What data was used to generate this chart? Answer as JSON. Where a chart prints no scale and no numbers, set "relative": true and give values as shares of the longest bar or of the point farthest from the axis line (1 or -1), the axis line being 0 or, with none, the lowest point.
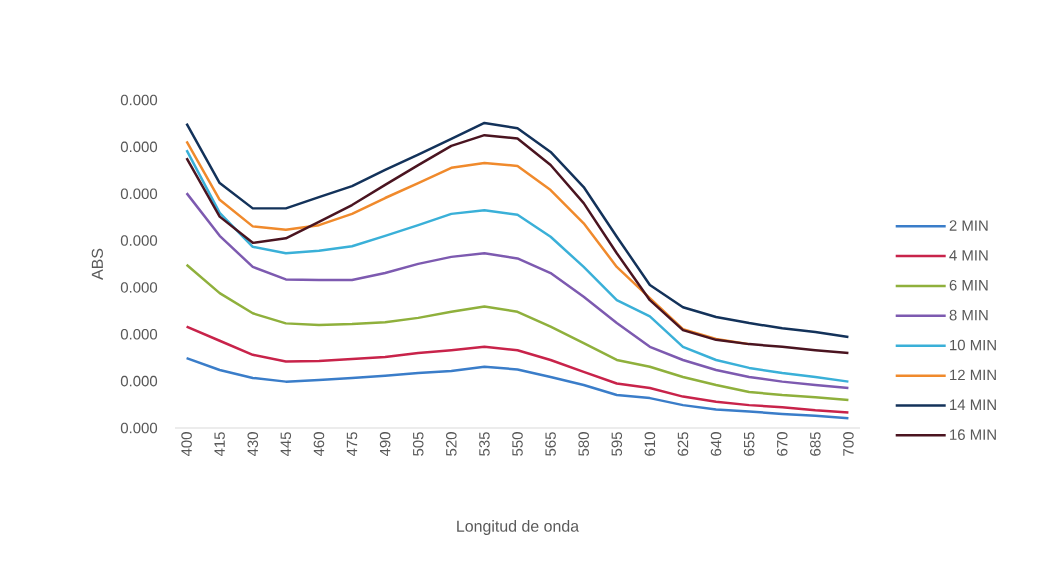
{
  "chart_data": {
    "type": "line",
    "xlabel": "Longitud de onda",
    "ylabel": "ABS",
    "categories": [
      "400",
      "415",
      "430",
      "445",
      "460",
      "475",
      "490",
      "505",
      "520",
      "535",
      "550",
      "565",
      "580",
      "595",
      "610",
      "625",
      "640",
      "655",
      "670",
      "685",
      "700"
    ],
    "relative": true,
    "annotations": [
      "0.000",
      "0.000",
      "0.000",
      "0.000",
      "0.000",
      "0.000",
      "0.000",
      "0.000"
    ],
    "legend": "right",
    "series": [
      {
        "name": "2 MIN",
        "color": "#3a7dc9",
        "values": [
          0.229,
          0.19,
          0.164,
          0.152,
          0.157,
          0.164,
          0.171,
          0.18,
          0.187,
          0.201,
          0.192,
          0.167,
          0.141,
          0.108,
          0.098,
          0.075,
          0.061,
          0.054,
          0.046,
          0.04,
          0.032
        ]
      },
      {
        "name": "4 MIN",
        "color": "#c8234a",
        "values": [
          0.332,
          0.286,
          0.24,
          0.218,
          0.22,
          0.226,
          0.233,
          0.246,
          0.255,
          0.266,
          0.255,
          0.223,
          0.184,
          0.146,
          0.131,
          0.103,
          0.086,
          0.075,
          0.068,
          0.058,
          0.051
        ]
      },
      {
        "name": "6 MIN",
        "color": "#8fb03c",
        "values": [
          0.535,
          0.442,
          0.376,
          0.343,
          0.338,
          0.341,
          0.347,
          0.361,
          0.381,
          0.398,
          0.381,
          0.332,
          0.278,
          0.223,
          0.201,
          0.167,
          0.141,
          0.118,
          0.108,
          0.101,
          0.092
        ]
      },
      {
        "name": "8 MIN",
        "color": "#7d5ab0",
        "values": [
          0.77,
          0.63,
          0.528,
          0.487,
          0.485,
          0.485,
          0.508,
          0.538,
          0.561,
          0.573,
          0.556,
          0.508,
          0.43,
          0.344,
          0.266,
          0.223,
          0.19,
          0.167,
          0.152,
          0.141,
          0.131
        ]
      },
      {
        "name": "10 MIN",
        "color": "#3ab0d8",
        "values": [
          0.911,
          0.705,
          0.594,
          0.573,
          0.581,
          0.596,
          0.63,
          0.665,
          0.702,
          0.714,
          0.699,
          0.627,
          0.528,
          0.419,
          0.366,
          0.266,
          0.223,
          0.197,
          0.18,
          0.167,
          0.152
        ]
      },
      {
        "name": "12 MIN",
        "color": "#f08a2c",
        "values": [
          0.94,
          0.748,
          0.661,
          0.65,
          0.665,
          0.702,
          0.754,
          0.803,
          0.853,
          0.869,
          0.859,
          0.78,
          0.671,
          0.528,
          0.426,
          0.324,
          0.292,
          0.275,
          null,
          null,
          null
        ]
      },
      {
        "name": "14 MIN",
        "color": "#13325a",
        "values": [
          0.998,
          0.803,
          0.72,
          0.72,
          0.757,
          0.793,
          0.846,
          0.896,
          0.948,
          1,
          0.983,
          0.905,
          0.79,
          0.627,
          0.469,
          0.396,
          0.364,
          0.344,
          0.327,
          0.315,
          0.298
        ]
      },
      {
        "name": "16 MIN",
        "color": "#4a1420",
        "values": [
          0.885,
          0.693,
          0.607,
          0.622,
          0.676,
          0.731,
          0.797,
          0.862,
          0.925,
          0.96,
          0.949,
          0.862,
          0.737,
          0.573,
          0.419,
          0.321,
          0.289,
          0.275,
          0.266,
          0.255,
          0.246
        ]
      }
    ]
  }
}
